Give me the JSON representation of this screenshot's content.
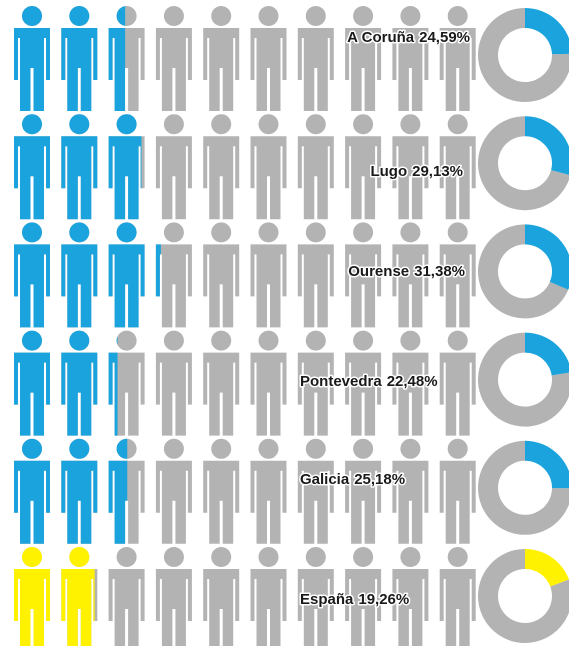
{
  "chart_data": {
    "type": "pictogram",
    "categories": [
      "A Coruña",
      "Lugo",
      "Ourense",
      "Pontevedra",
      "Galicia",
      "España"
    ],
    "values": [
      24.59,
      29.13,
      31.38,
      22.48,
      25.18,
      19.26
    ],
    "value_labels": [
      "24,59%",
      "29,13%",
      "31,38%",
      "22,48%",
      "25,18%",
      "19,26%"
    ],
    "colors": [
      "#1ba3dd",
      "#1ba3dd",
      "#1ba3dd",
      "#1ba3dd",
      "#1ba3dd",
      "#fff200"
    ],
    "rest_color": "#b3b3b3",
    "ylim": [
      0,
      100
    ]
  }
}
